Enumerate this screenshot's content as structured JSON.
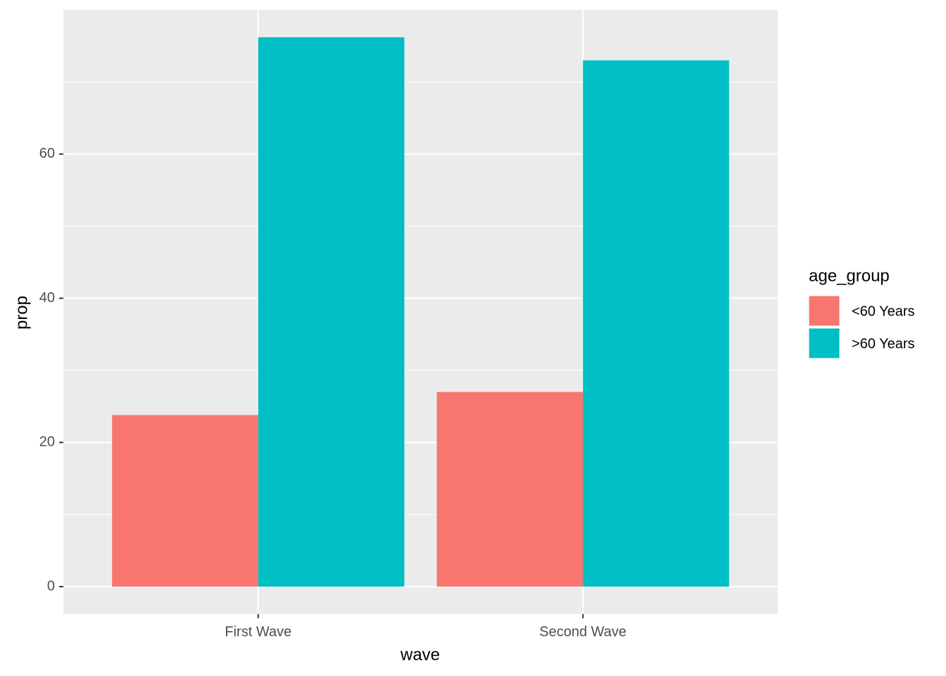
{
  "chart_data": {
    "type": "bar",
    "x_label": "wave",
    "y_label": "prop",
    "categories": [
      "First Wave",
      "Second Wave"
    ],
    "series": [
      {
        "name": "<60 Years",
        "color": "#f8766d",
        "values": [
          23.8,
          27.0
        ]
      },
      {
        "name": ">60 Years",
        "color": "#00bfc4",
        "values": [
          76.2,
          73.0
        ]
      }
    ],
    "legend_title": "age_group",
    "legend_position": "right",
    "ylim": [
      -3.8,
      80.0
    ],
    "yticks": [
      0,
      20,
      40,
      60
    ],
    "y_minor_ticks": [
      10,
      30,
      50,
      70
    ],
    "grid": true
  }
}
